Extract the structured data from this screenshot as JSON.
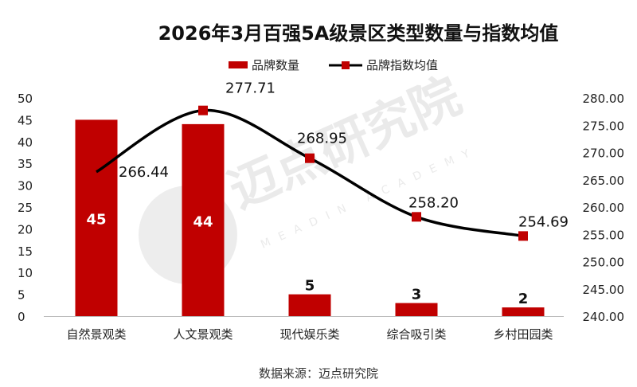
{
  "chart_data": {
    "type": "bar+line",
    "title": "2026年3月百强5A级景区类型数量与指数均值",
    "categories": [
      "自然景观类",
      "人文景观类",
      "现代娱乐类",
      "综合吸引类",
      "乡村田园类"
    ],
    "series": [
      {
        "name": "品牌数量",
        "type": "bar",
        "axis": "left",
        "values": [
          45,
          44,
          5,
          3,
          2
        ],
        "color": "#C00000"
      },
      {
        "name": "品牌指数均值",
        "type": "line",
        "axis": "right",
        "values": [
          266.44,
          277.71,
          268.95,
          258.2,
          254.69
        ],
        "value_labels": [
          "266.44",
          "277.71",
          "268.95",
          "258.20",
          "254.69"
        ],
        "color": "#000000",
        "marker_color": "#C00000",
        "marker_visible": [
          false,
          true,
          true,
          true,
          true
        ],
        "smooth": true
      }
    ],
    "left_axis": {
      "range": [
        0,
        50
      ],
      "ticks": [
        "0",
        "5",
        "10",
        "15",
        "20",
        "25",
        "30",
        "35",
        "40",
        "45",
        "50"
      ]
    },
    "right_axis": {
      "range": [
        240,
        280
      ],
      "ticks": [
        "240.00",
        "245.00",
        "250.00",
        "255.00",
        "260.00",
        "265.00",
        "270.00",
        "275.00",
        "280.00"
      ]
    },
    "grid": false,
    "legend": "top"
  },
  "source": "数据来源：迈点研究院",
  "watermark": {
    "text": "迈点研究院",
    "subtext": "MEADIN ACADEMY"
  }
}
